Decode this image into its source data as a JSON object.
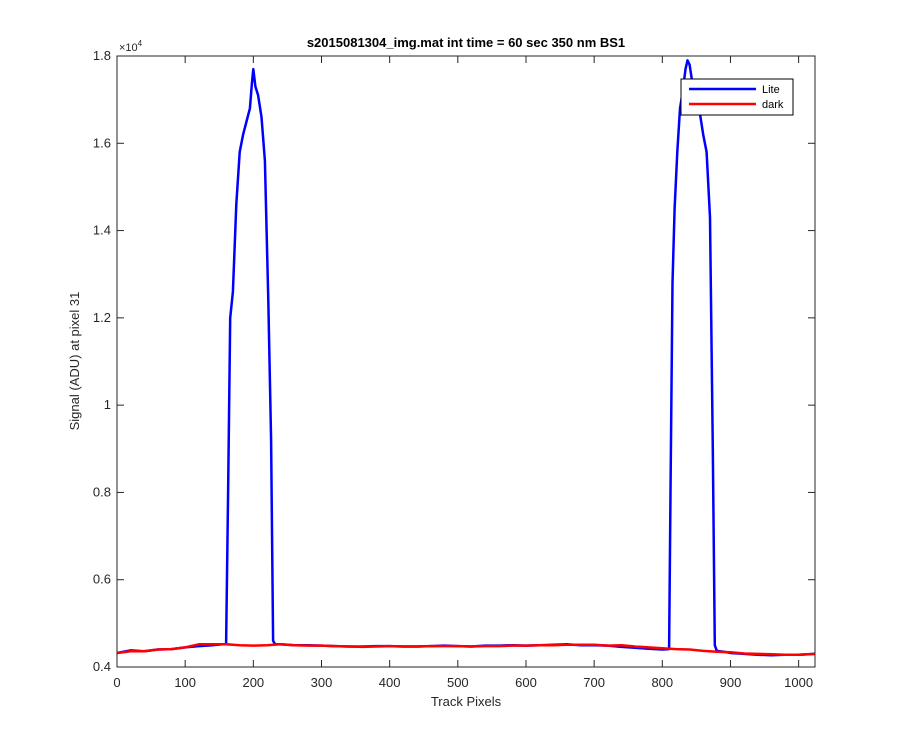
{
  "chart_data": {
    "type": "line",
    "title": "s2015081304_img.mat int time = 60 sec  350 nm BS1",
    "xlabel": "Track Pixels",
    "ylabel": "Signal (ADU) at pixel 31",
    "exponent_label": "×10",
    "exponent_power": "4",
    "xlim": [
      0,
      1024
    ],
    "ylim": [
      0.4,
      1.8
    ],
    "y_scale_multiplier": 10000,
    "x_ticks": [
      0,
      100,
      200,
      300,
      400,
      500,
      600,
      700,
      800,
      900,
      1000
    ],
    "x_tick_labels": [
      "0",
      "100",
      "200",
      "300",
      "400",
      "500",
      "600",
      "700",
      "800",
      "900",
      "1000"
    ],
    "y_ticks": [
      0.4,
      0.6,
      0.8,
      1.0,
      1.2,
      1.4,
      1.6,
      1.8
    ],
    "y_tick_labels": [
      "0.4",
      "0.6",
      "0.8",
      "1",
      "1.2",
      "1.4",
      "1.6",
      "1.8"
    ],
    "grid": false,
    "legend_position": "top-right",
    "series": [
      {
        "name": "Lite",
        "color": "#0000ff",
        "x": [
          0,
          20,
          40,
          60,
          80,
          100,
          120,
          140,
          155,
          160,
          163,
          166,
          170,
          175,
          180,
          185,
          190,
          195,
          198,
          200,
          203,
          207,
          212,
          217,
          222,
          226,
          229,
          232,
          240,
          260,
          280,
          300,
          320,
          340,
          360,
          380,
          400,
          420,
          440,
          460,
          480,
          500,
          520,
          540,
          560,
          580,
          600,
          620,
          640,
          660,
          680,
          700,
          720,
          740,
          760,
          780,
          800,
          810,
          812,
          815,
          818,
          822,
          826,
          830,
          834,
          837,
          840,
          843,
          846,
          850,
          855,
          860,
          865,
          870,
          874,
          877,
          880,
          890,
          900,
          920,
          940,
          960,
          980,
          1000,
          1024
        ],
        "y": [
          0.432,
          0.438,
          0.436,
          0.44,
          0.441,
          0.445,
          0.448,
          0.45,
          0.452,
          0.452,
          0.8,
          1.2,
          1.26,
          1.46,
          1.58,
          1.62,
          1.65,
          1.68,
          1.74,
          1.77,
          1.73,
          1.71,
          1.66,
          1.56,
          1.24,
          0.92,
          0.46,
          0.452,
          0.452,
          0.45,
          0.45,
          0.449,
          0.448,
          0.447,
          0.447,
          0.448,
          0.448,
          0.447,
          0.447,
          0.448,
          0.449,
          0.448,
          0.447,
          0.449,
          0.449,
          0.45,
          0.449,
          0.45,
          0.451,
          0.452,
          0.45,
          0.45,
          0.449,
          0.446,
          0.444,
          0.442,
          0.44,
          0.441,
          0.8,
          1.28,
          1.45,
          1.58,
          1.68,
          1.72,
          1.77,
          1.79,
          1.78,
          1.75,
          1.7,
          1.73,
          1.67,
          1.62,
          1.58,
          1.43,
          0.9,
          0.45,
          0.437,
          0.435,
          0.432,
          0.43,
          0.428,
          0.427,
          0.428,
          0.428,
          0.43
        ]
      },
      {
        "name": "dark",
        "color": "#ff0000",
        "x": [
          0,
          20,
          40,
          60,
          80,
          100,
          120,
          140,
          160,
          180,
          200,
          220,
          240,
          260,
          280,
          300,
          320,
          340,
          360,
          380,
          400,
          420,
          440,
          460,
          480,
          500,
          520,
          540,
          560,
          580,
          600,
          620,
          640,
          660,
          680,
          700,
          720,
          740,
          760,
          780,
          800,
          820,
          840,
          860,
          880,
          900,
          920,
          940,
          960,
          980,
          1000,
          1024
        ],
        "y": [
          0.432,
          0.436,
          0.436,
          0.44,
          0.441,
          0.445,
          0.452,
          0.452,
          0.452,
          0.45,
          0.449,
          0.45,
          0.452,
          0.45,
          0.449,
          0.449,
          0.448,
          0.447,
          0.446,
          0.447,
          0.448,
          0.447,
          0.447,
          0.448,
          0.448,
          0.448,
          0.447,
          0.448,
          0.448,
          0.449,
          0.449,
          0.45,
          0.45,
          0.451,
          0.451,
          0.451,
          0.449,
          0.45,
          0.447,
          0.445,
          0.443,
          0.441,
          0.44,
          0.437,
          0.435,
          0.434,
          0.431,
          0.43,
          0.429,
          0.428,
          0.428,
          0.43
        ]
      }
    ]
  }
}
